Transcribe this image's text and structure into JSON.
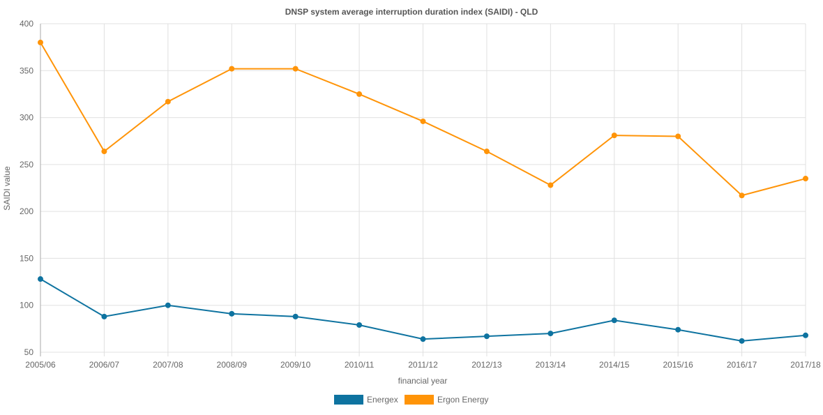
{
  "chart_data": {
    "type": "line",
    "title": "DNSP system average interruption duration index (SAIDI) - QLD",
    "xlabel": "financial year",
    "ylabel": "SAIDI value",
    "ylim": [
      50,
      400
    ],
    "yticks": [
      50,
      100,
      150,
      200,
      250,
      300,
      350,
      400
    ],
    "grid": true,
    "legend_position": "bottom",
    "categories": [
      "2005/06",
      "2006/07",
      "2007/08",
      "2008/09",
      "2009/10",
      "2010/11",
      "2011/12",
      "2012/13",
      "2013/14",
      "2014/15",
      "2015/16",
      "2016/17",
      "2017/18"
    ],
    "series": [
      {
        "name": "Energex",
        "color": "#0e73a0",
        "values": [
          128,
          88,
          100,
          91,
          88,
          79,
          64,
          67,
          70,
          84,
          74,
          62,
          68
        ]
      },
      {
        "name": "Ergon Energy",
        "color": "#ff9408",
        "values": [
          380,
          264,
          317,
          352,
          352,
          325,
          296,
          264,
          228,
          281,
          280,
          217,
          235
        ]
      }
    ]
  }
}
